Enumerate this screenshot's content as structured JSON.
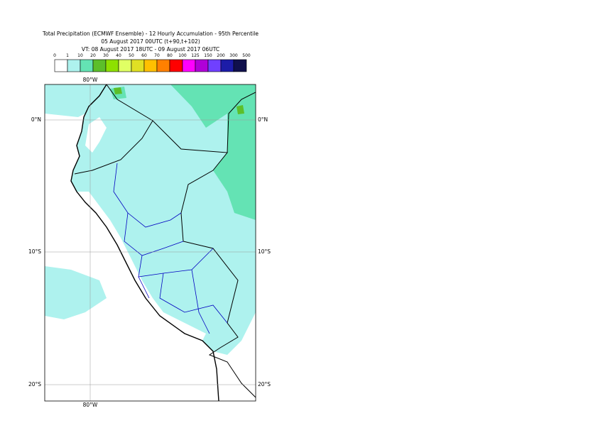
{
  "header": {
    "title_lines": [
      "Total Precipitation (ECMWF Ensemble) - 12 Hourly Accumulation - 95th Percentile",
      "05 August 2017 00UTC (t+90,t+102)",
      "VT: 08 August 2017 18UTC - 09 August 2017 06UTC"
    ]
  },
  "legend": {
    "levels": [
      "0",
      "1",
      "10",
      "20",
      "30",
      "40",
      "50",
      "60",
      "70",
      "80",
      "100",
      "125",
      "150",
      "200",
      "300",
      "500"
    ],
    "colors": [
      "#ffffff",
      "#aef2ee",
      "#64e3b4",
      "#5cbf2a",
      "#8ee000",
      "#e0ff64",
      "#e0e024",
      "#ffc000",
      "#ff8000",
      "#ff0000",
      "#ff00ff",
      "#b000d8",
      "#7040ff",
      "#1c1ca8",
      "#10104c"
    ]
  },
  "map": {
    "lon_labels": [
      "80°W"
    ],
    "lat_labels": [
      "0°N",
      "10°S",
      "20°S"
    ]
  }
}
